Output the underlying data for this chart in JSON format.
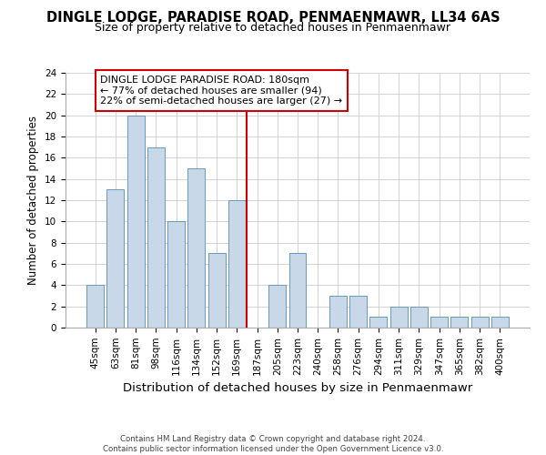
{
  "title": "DINGLE LODGE, PARADISE ROAD, PENMAENMAWR, LL34 6AS",
  "subtitle": "Size of property relative to detached houses in Penmaenmawr",
  "xlabel": "Distribution of detached houses by size in Penmaenmawr",
  "ylabel": "Number of detached properties",
  "categories": [
    "45sqm",
    "63sqm",
    "81sqm",
    "98sqm",
    "116sqm",
    "134sqm",
    "152sqm",
    "169sqm",
    "187sqm",
    "205sqm",
    "223sqm",
    "240sqm",
    "258sqm",
    "276sqm",
    "294sqm",
    "311sqm",
    "329sqm",
    "347sqm",
    "365sqm",
    "382sqm",
    "400sqm"
  ],
  "values": [
    4,
    13,
    20,
    17,
    10,
    15,
    7,
    12,
    0,
    4,
    7,
    0,
    3,
    3,
    1,
    2,
    2,
    1,
    1,
    1,
    1
  ],
  "bar_color": "#c8d8e8",
  "bar_edge_color": "#6699bb",
  "vline_x_index": 8,
  "vline_color": "#cc0000",
  "ylim": [
    0,
    24
  ],
  "yticks": [
    0,
    2,
    4,
    6,
    8,
    10,
    12,
    14,
    16,
    18,
    20,
    22,
    24
  ],
  "annotation_box_text_line1": "DINGLE LODGE PARADISE ROAD: 180sqm",
  "annotation_box_text_line2": "← 77% of detached houses are smaller (94)",
  "annotation_box_text_line3": "22% of semi-detached houses are larger (27) →",
  "footer_line1": "Contains HM Land Registry data © Crown copyright and database right 2024.",
  "footer_line2": "Contains public sector information licensed under the Open Government Licence v3.0.",
  "background_color": "#ffffff",
  "grid_color": "#cccccc",
  "title_fontsize": 10.5,
  "subtitle_fontsize": 9,
  "xlabel_fontsize": 9.5,
  "ylabel_fontsize": 8.5,
  "tick_fontsize": 7.5,
  "annotation_fontsize": 8,
  "footer_fontsize": 6.2
}
